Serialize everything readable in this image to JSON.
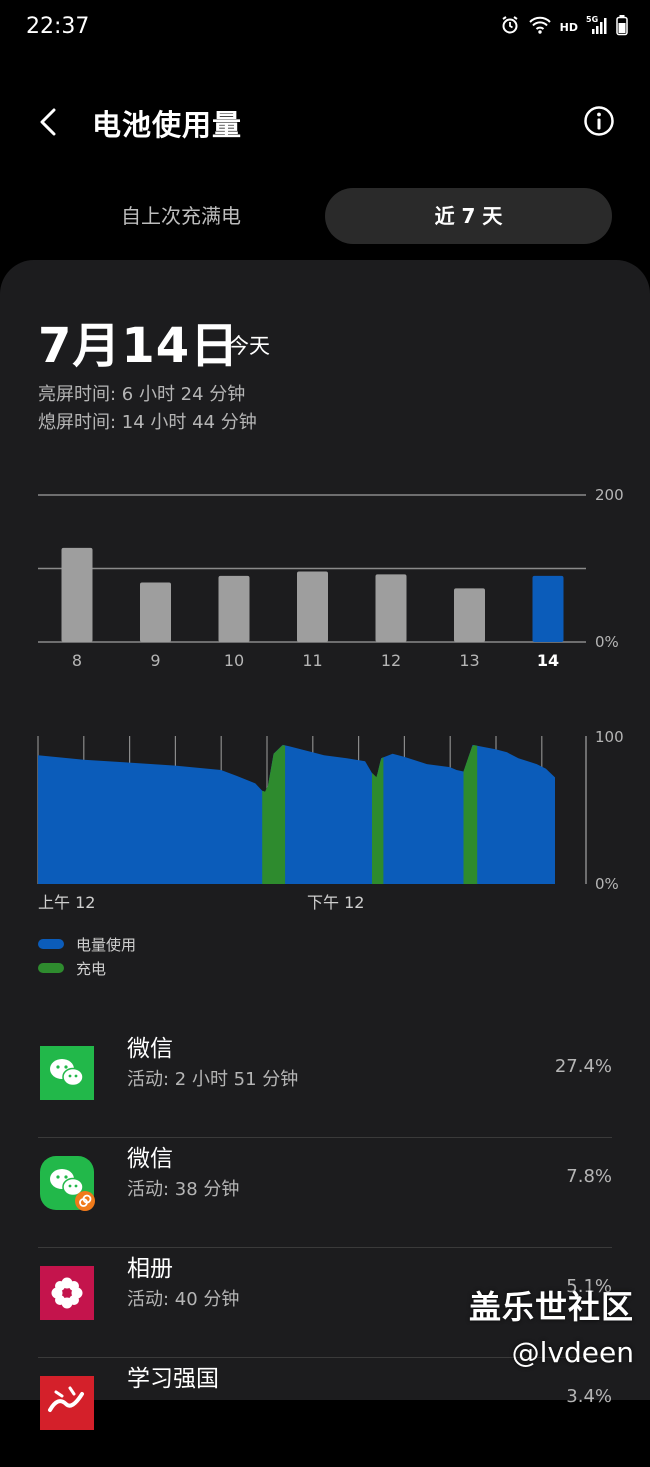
{
  "status_bar": {
    "time": "22:37",
    "icons": [
      "alarm-icon",
      "wifi-icon",
      "hd-icon",
      "5g-signal-icon",
      "battery-icon"
    ],
    "hd_label": "HD",
    "network_label": "5G"
  },
  "header": {
    "title": "电池使用量",
    "back_icon": "chevron-left-icon",
    "info_icon": "info-icon"
  },
  "tabs": [
    {
      "label": "自上次充满电",
      "selected": false
    },
    {
      "label": "近 7 天",
      "selected": true
    }
  ],
  "summary": {
    "date": "7月14日",
    "date_suffix": "今天",
    "screen_on": "亮屏时间:  6 小时 24 分钟",
    "screen_off": "熄屏时间:  14 小时 44 分钟"
  },
  "colors": {
    "accent": "#0b5cba",
    "charging": "#2e8b2e",
    "bar_gray": "#9e9e9e",
    "card_bg": "#1c1c1e"
  },
  "chart_data": [
    {
      "type": "bar",
      "categories": [
        "8",
        "9",
        "10",
        "11",
        "12",
        "13",
        "14"
      ],
      "values": [
        128,
        81,
        90,
        96,
        92,
        73,
        90
      ],
      "highlight_index": 6,
      "y_tick_labels": [
        "200",
        "0%"
      ],
      "ylim": [
        0,
        200
      ],
      "grid": true
    },
    {
      "type": "area",
      "x_labels": [
        "上午 12",
        "下午 12"
      ],
      "y_tick_labels": [
        "100",
        "0%"
      ],
      "ylim": [
        0,
        100
      ],
      "x_range_hours": [
        0,
        22.6
      ],
      "series": [
        {
          "name": "电量使用",
          "points": [
            [
              0,
              87
            ],
            [
              2,
              84
            ],
            [
              4,
              82
            ],
            [
              6,
              80
            ],
            [
              8,
              77
            ],
            [
              8.7,
              73
            ],
            [
              9.5,
              68
            ],
            [
              9.8,
              63
            ],
            [
              10,
              62
            ],
            [
              10.3,
              88
            ],
            [
              10.7,
              94
            ],
            [
              11,
              93
            ],
            [
              12,
              89
            ],
            [
              12.5,
              87
            ],
            [
              13.5,
              85
            ],
            [
              14.3,
              83
            ],
            [
              14.6,
              75
            ],
            [
              14.8,
              72
            ],
            [
              15,
              85
            ],
            [
              15.5,
              88
            ],
            [
              16,
              86
            ],
            [
              17,
              81
            ],
            [
              18,
              79
            ],
            [
              18.3,
              77
            ],
            [
              18.6,
              76
            ],
            [
              18.8,
              85
            ],
            [
              19,
              94
            ],
            [
              20,
              91
            ],
            [
              20.5,
              89
            ],
            [
              21,
              85
            ],
            [
              21.8,
              81
            ],
            [
              22.2,
              78
            ],
            [
              22.6,
              72
            ]
          ]
        },
        {
          "name": "充电",
          "intervals_hours": [
            [
              9.8,
              10.8
            ],
            [
              14.6,
              15.1
            ],
            [
              18.6,
              19.2
            ]
          ]
        }
      ],
      "grid": true
    }
  ],
  "legend": [
    {
      "label": "电量使用",
      "color": "#0b5cba"
    },
    {
      "label": "充电",
      "color": "#2e8b2e"
    }
  ],
  "apps": [
    {
      "name": "微信",
      "activity": "活动: 2 小时 51 分钟",
      "percent": "27.4%",
      "icon": "wechat-icon"
    },
    {
      "name": "微信",
      "activity": "活动: 38 分钟",
      "percent": "7.8%",
      "icon": "wechat-clone-icon"
    },
    {
      "name": "相册",
      "activity": "活动: 40 分钟",
      "percent": "5.1%",
      "icon": "gallery-icon"
    },
    {
      "name": "学习强国",
      "activity": "",
      "percent": "3.4%",
      "icon": "xuexi-qiangguo-icon"
    }
  ],
  "watermark": {
    "line1": "盖乐世社区",
    "line2": "@lvdeen"
  }
}
